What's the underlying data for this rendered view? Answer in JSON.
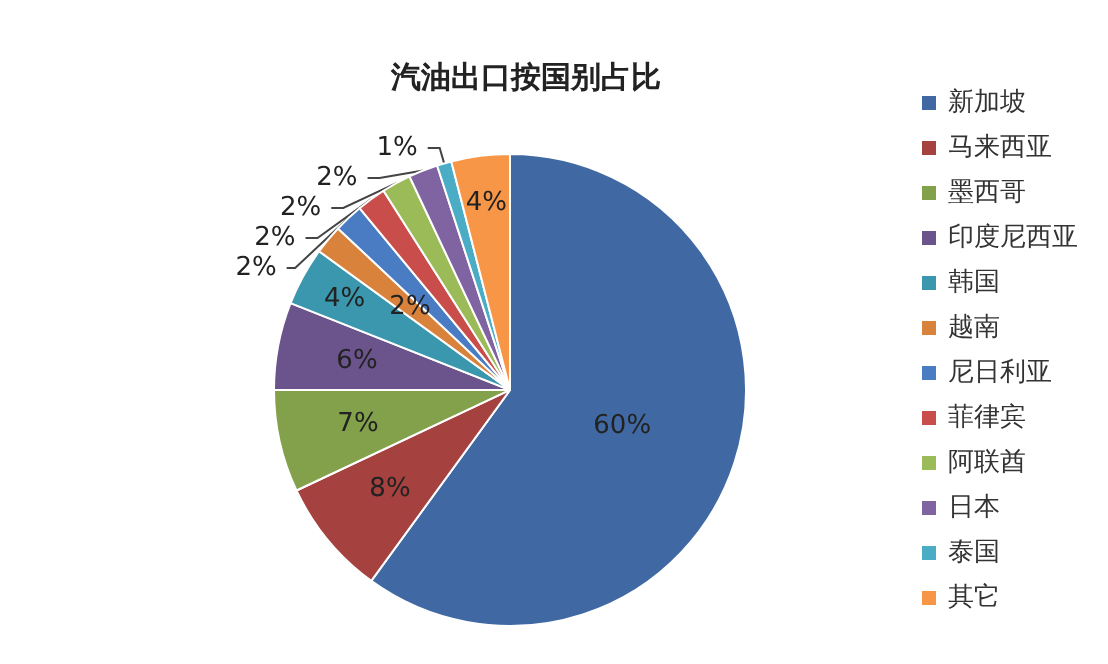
{
  "chart_data": {
    "type": "pie",
    "title": "汽油出口按国别占比",
    "categories": [
      "新加坡",
      "马来西亚",
      "墨西哥",
      "印度尼西亚",
      "韩国",
      "越南",
      "尼日利亚",
      "菲律宾",
      "阿联酋",
      "日本",
      "泰国",
      "其它"
    ],
    "values": [
      60,
      8,
      7,
      6,
      4,
      2,
      2,
      2,
      2,
      2,
      1,
      4
    ],
    "value_labels": [
      "60%",
      "8%",
      "7%",
      "6%",
      "4%",
      "2%",
      "2%",
      "2%",
      "2%",
      "2%",
      "1%",
      "4%"
    ],
    "colors": [
      "#4069a4",
      "#a5413f",
      "#83a04a",
      "#6b538b",
      "#3b97ad",
      "#d8823b",
      "#4a7cc4",
      "#c94e4b",
      "#9bbb59",
      "#8064a2",
      "#4bacc6",
      "#f79646"
    ],
    "legend": "right"
  }
}
